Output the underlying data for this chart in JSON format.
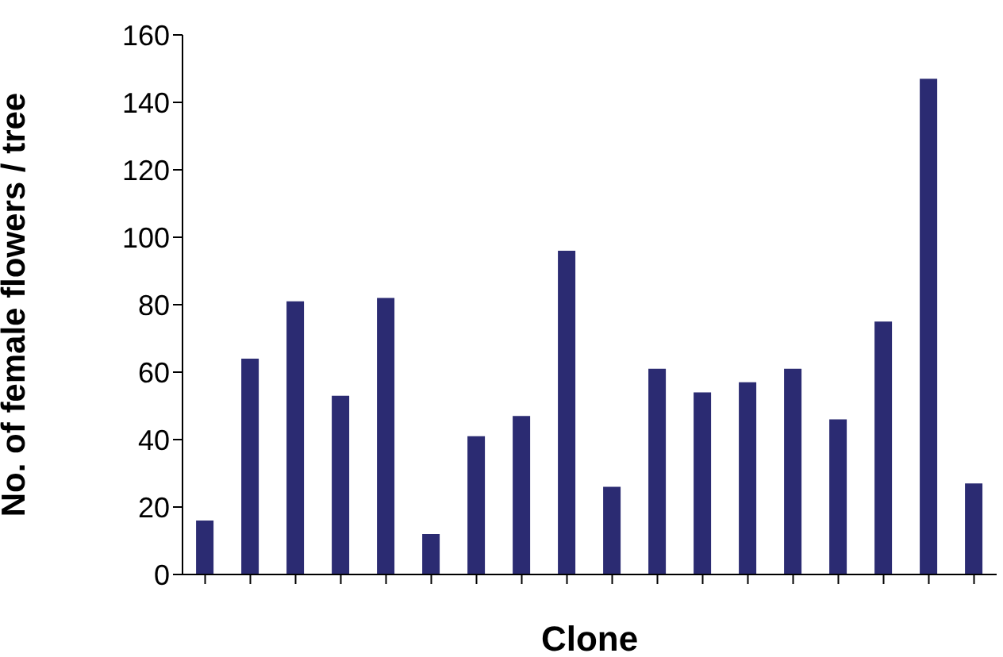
{
  "chart_data": {
    "type": "bar",
    "xlabel": "Clone",
    "ylabel": "No. of female flowers / tree",
    "categories": [
      null,
      null,
      null,
      null,
      null,
      null,
      null,
      null,
      null,
      null,
      null,
      null,
      null,
      null,
      null,
      null,
      null,
      null
    ],
    "values": [
      16,
      64,
      81,
      53,
      82,
      12,
      41,
      47,
      96,
      26,
      61,
      54,
      57,
      61,
      46,
      75,
      147,
      27
    ],
    "color": "#2b2b72",
    "ylim": [
      0,
      160
    ],
    "yticks": [
      0,
      20,
      40,
      60,
      80,
      100,
      120,
      140,
      160
    ],
    "tick_labels": "y"
  }
}
